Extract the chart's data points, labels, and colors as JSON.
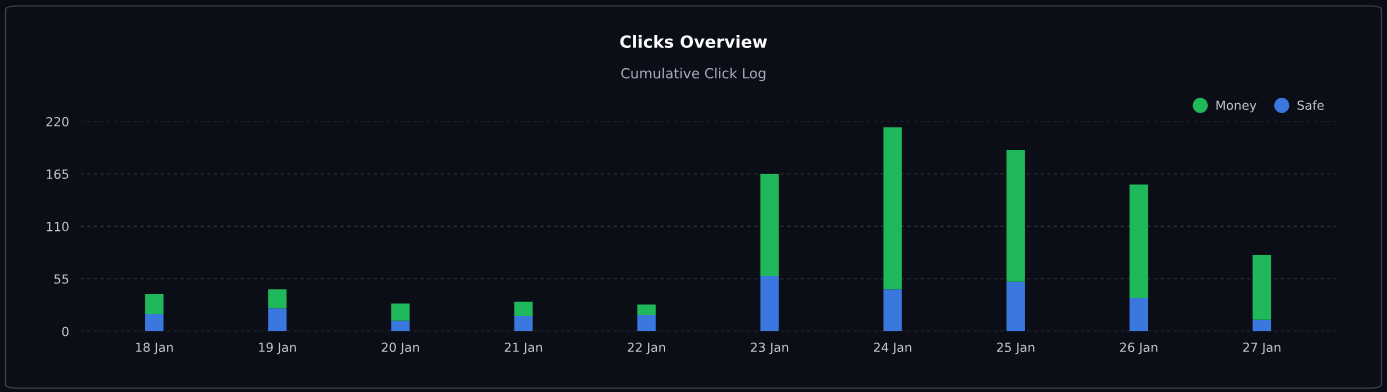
{
  "chart_data": {
    "type": "bar",
    "title": "Clicks Overview",
    "subtitle": "Cumulative Click Log",
    "stacked": true,
    "categories": [
      "18 Jan",
      "19 Jan",
      "20 Jan",
      "21 Jan",
      "22 Jan",
      "23 Jan",
      "24 Jan",
      "25 Jan",
      "26 Jan",
      "27 Jan"
    ],
    "series": [
      {
        "name": "Safe",
        "color": "#3a78e0",
        "values": [
          18,
          24,
          11,
          16,
          17,
          58,
          44,
          52,
          35,
          12
        ]
      },
      {
        "name": "Money",
        "color": "#1fb85a",
        "values": [
          21,
          20,
          18,
          15,
          11,
          107,
          170,
          138,
          119,
          68
        ]
      }
    ],
    "ylim": [
      0,
      220
    ],
    "yticks": [
      0,
      55,
      110,
      165,
      220
    ],
    "grid": "y",
    "legend": "top right"
  }
}
